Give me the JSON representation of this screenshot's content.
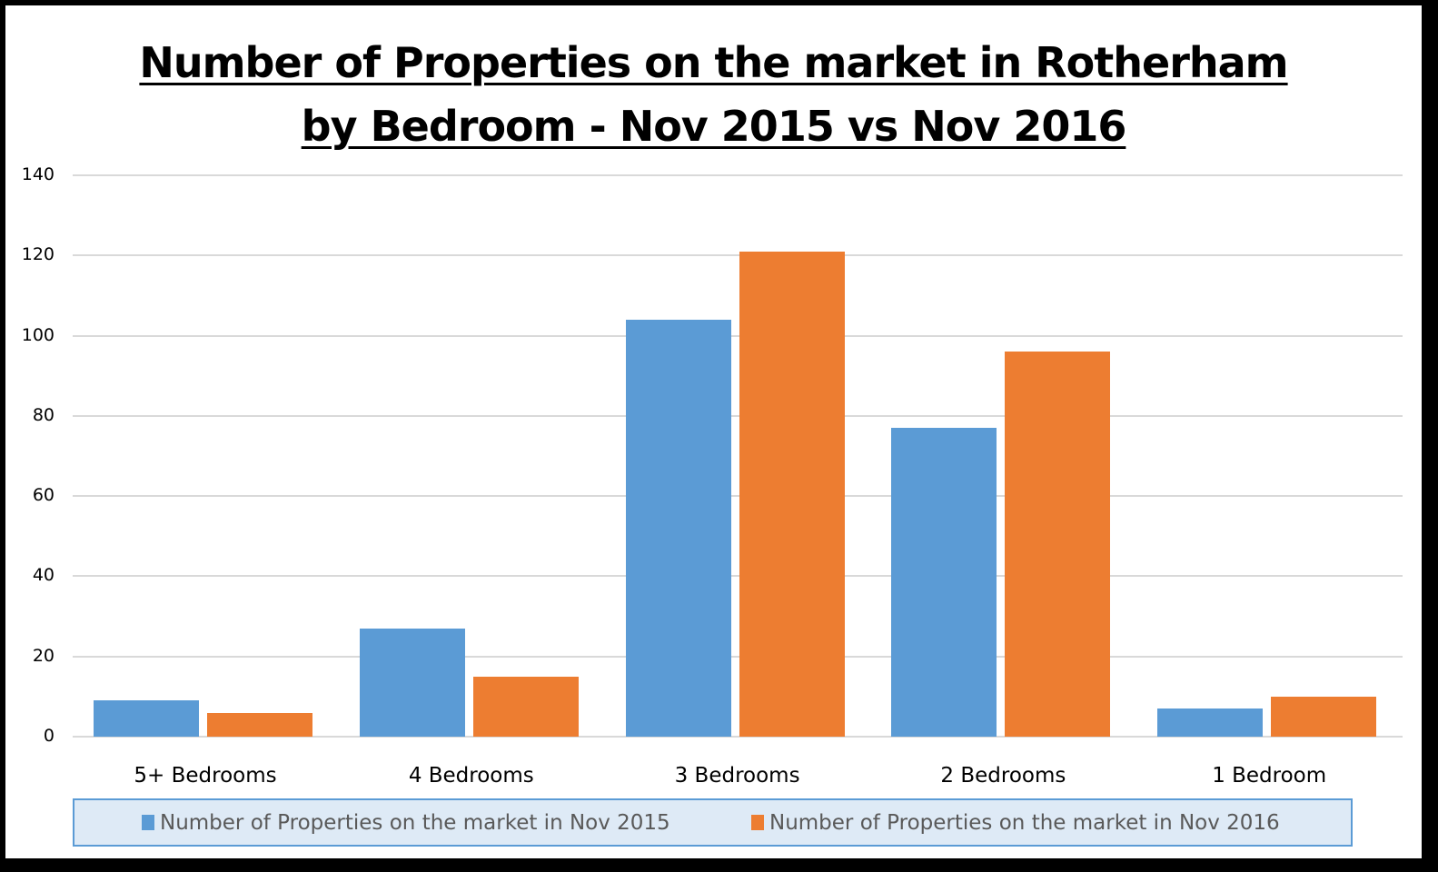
{
  "chart_data": {
    "type": "bar",
    "title": "Number of Properties on the market in Rotherham by Bedroom  - Nov 2015 vs Nov 2016",
    "title_lines": [
      "Number of Properties on the market in Rotherham",
      "by Bedroom  - Nov 2015 vs Nov 2016"
    ],
    "xlabel": "",
    "ylabel": "",
    "ylim": [
      0,
      140
    ],
    "yticks": [
      0,
      20,
      40,
      60,
      80,
      100,
      120,
      140
    ],
    "grid": true,
    "legend_position": "bottom",
    "categories": [
      "5+ Bedrooms",
      "4 Bedrooms",
      "3 Bedrooms",
      "2 Bedrooms",
      "1 Bedroom"
    ],
    "series": [
      {
        "name": "Number of Properties on the market in Nov 2015",
        "color": "#5b9bd5",
        "values": [
          9,
          27,
          104,
          77,
          7
        ]
      },
      {
        "name": "Number of Properties on the market in Nov 2016",
        "color": "#ed7d31",
        "values": [
          6,
          15,
          121,
          96,
          10
        ]
      }
    ]
  },
  "colors": {
    "grid": "#d9d9d9",
    "legend_bg": "#deeaf6",
    "legend_border": "#5b9bd5",
    "frame": "#000000"
  }
}
